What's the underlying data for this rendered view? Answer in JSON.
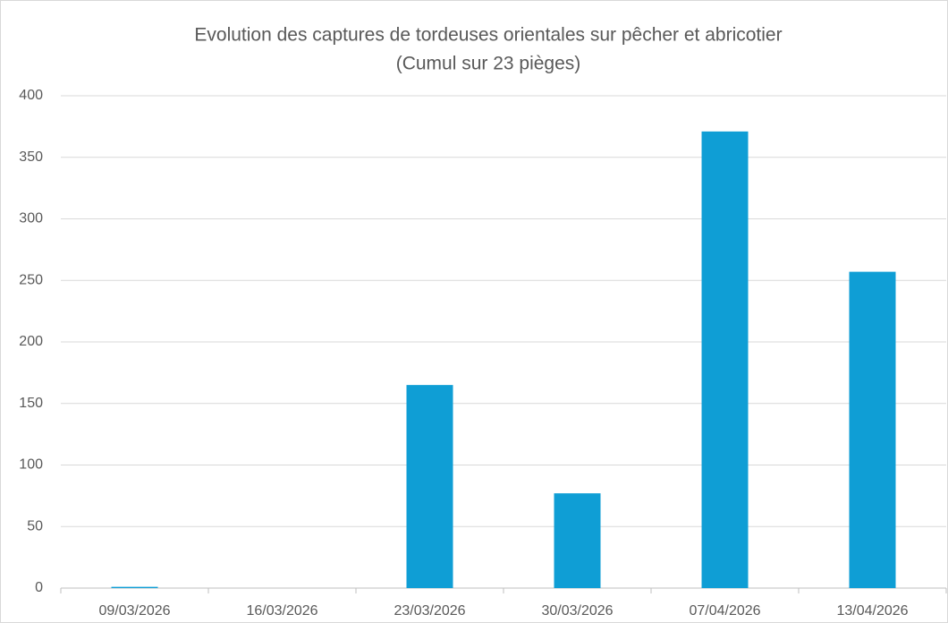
{
  "chart_data": {
    "type": "bar",
    "title": "Evolution des captures de tordeuses orientales sur pêcher et abricotier",
    "subtitle": "(Cumul sur 23 pièges)",
    "categories": [
      "09/03/2026",
      "16/03/2026",
      "23/03/2026",
      "30/03/2026",
      "07/04/2026",
      "13/04/2026"
    ],
    "values": [
      1,
      0,
      165,
      77,
      371,
      257
    ],
    "color": "#0f9ed5",
    "ylim": [
      0,
      400
    ],
    "yticks": [
      0,
      50,
      100,
      150,
      200,
      250,
      300,
      350,
      400
    ],
    "grid": true
  }
}
